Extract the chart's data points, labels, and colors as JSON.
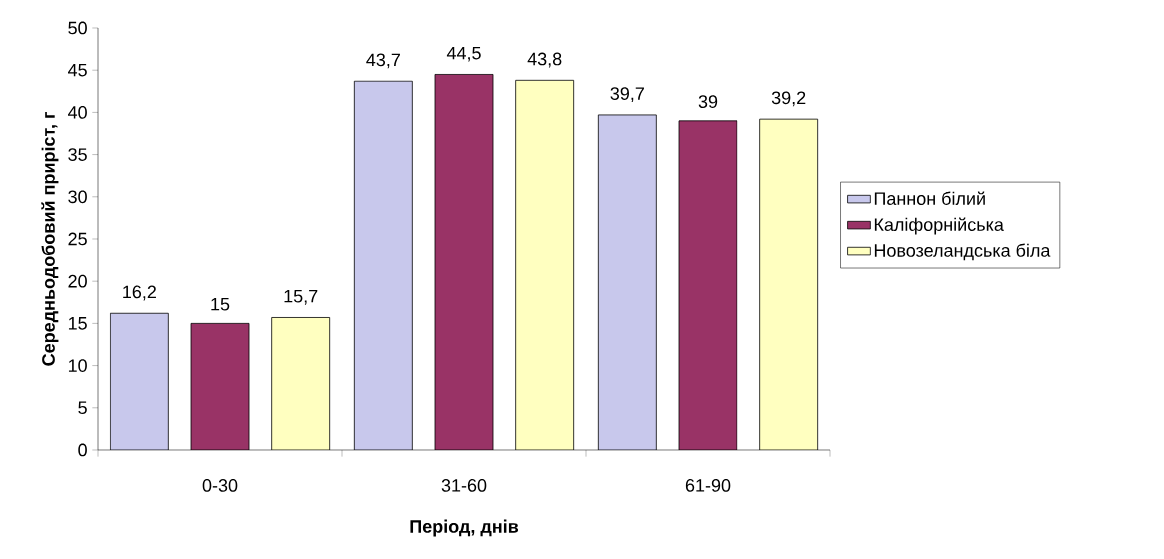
{
  "chart_data": {
    "type": "bar",
    "xlabel": "Період, днів",
    "ylabel": "Середньодобовий приріст, г",
    "categories": [
      "0-30",
      "31-60",
      "61-90"
    ],
    "series": [
      {
        "name": "Паннон білий",
        "color": "#c8c8ec",
        "values": [
          16.2,
          43.7,
          39.7
        ],
        "value_labels": [
          "16,2",
          "43,7",
          "39,7"
        ]
      },
      {
        "name": "Каліфорнійська",
        "color": "#993366",
        "values": [
          15,
          44.5,
          39
        ],
        "value_labels": [
          "15",
          "44,5",
          "39"
        ]
      },
      {
        "name": "Новозеландська біла",
        "color": "#ffffc0",
        "values": [
          15.7,
          43.8,
          39.2
        ],
        "value_labels": [
          "15,7",
          "43,8",
          "39,2"
        ]
      }
    ],
    "ylim": [
      0,
      50
    ],
    "yticks": [
      0,
      5,
      10,
      15,
      20,
      25,
      30,
      35,
      40,
      45,
      50
    ],
    "grid": false,
    "legend": "right"
  }
}
